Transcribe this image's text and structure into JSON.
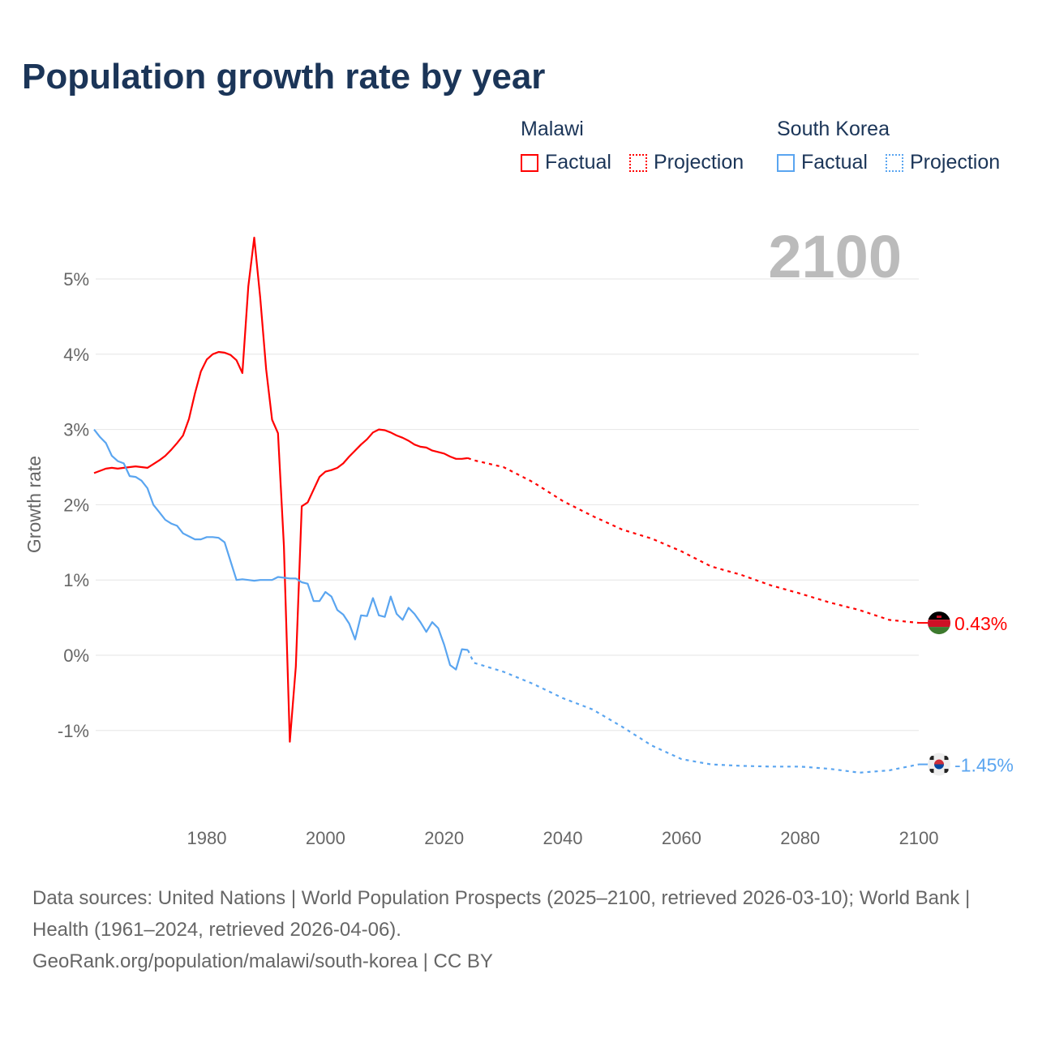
{
  "title": "Population growth rate by year",
  "legend": {
    "groups": [
      {
        "name": "Malawi",
        "factual": "Factual",
        "projection": "Projection",
        "color": "#ff0000"
      },
      {
        "name": "South Korea",
        "factual": "Factual",
        "projection": "Projection",
        "color": "#5aa5f0"
      }
    ]
  },
  "year_label": "2100",
  "footer": {
    "sources": "Data sources: United Nations | World Population Prospects (2025–2100, retrieved 2026-03-10); World Bank | Health (1961–2024, retrieved 2026-04-06).",
    "credit": "GeoRank.org/population/malawi/south-korea | CC BY"
  },
  "chart_data": {
    "type": "line",
    "title": "Population growth rate by year",
    "xlabel": "",
    "ylabel": "Growth rate",
    "xlim": [
      1961,
      2100
    ],
    "ylim": [
      -2,
      5.6
    ],
    "x_ticks": [
      1980,
      2000,
      2020,
      2040,
      2060,
      2080,
      2100
    ],
    "x_tick_labels": [
      "1980",
      "2000",
      "2020",
      "2040",
      "2060",
      "2080",
      "2100"
    ],
    "y_ticks": [
      -1,
      0,
      1,
      2,
      3,
      4,
      5
    ],
    "y_tick_labels": [
      "-1%",
      "0%",
      "1%",
      "2%",
      "3%",
      "4%",
      "5%"
    ],
    "grid": true,
    "legend_position": "top-right",
    "series": [
      {
        "name": "Malawi",
        "color": "#ff0000",
        "end_label": "0.43%",
        "factual": {
          "start_year": 1961,
          "values": [
            2.42,
            2.45,
            2.48,
            2.49,
            2.48,
            2.49,
            2.5,
            2.51,
            2.5,
            2.49,
            2.54,
            2.59,
            2.65,
            2.73,
            2.82,
            2.92,
            3.14,
            3.48,
            3.77,
            3.93,
            4.0,
            4.03,
            4.02,
            3.99,
            3.92,
            3.75,
            4.9,
            5.55,
            4.75,
            3.8,
            3.13,
            2.95,
            1.45,
            -1.15,
            -0.15,
            1.98,
            2.03,
            2.2,
            2.37,
            2.44,
            2.46,
            2.49,
            2.55,
            2.64,
            2.72,
            2.8,
            2.87,
            2.96,
            3.0,
            2.99,
            2.96,
            2.92,
            2.89,
            2.85,
            2.8,
            2.77,
            2.76,
            2.72,
            2.7,
            2.68,
            2.64,
            2.61,
            2.61,
            2.62
          ]
        },
        "projection": {
          "years": [
            2024,
            2025,
            2030,
            2035,
            2040,
            2045,
            2050,
            2055,
            2060,
            2065,
            2070,
            2075,
            2080,
            2085,
            2090,
            2095,
            2100
          ],
          "values": [
            2.62,
            2.59,
            2.5,
            2.3,
            2.05,
            1.85,
            1.67,
            1.55,
            1.38,
            1.18,
            1.07,
            0.93,
            0.82,
            0.7,
            0.6,
            0.47,
            0.43
          ]
        }
      },
      {
        "name": "South Korea",
        "color": "#5aa5f0",
        "end_label": "-1.45%",
        "factual": {
          "start_year": 1961,
          "values": [
            3.0,
            2.9,
            2.82,
            2.65,
            2.58,
            2.55,
            2.38,
            2.37,
            2.32,
            2.22,
            2.0,
            1.9,
            1.8,
            1.75,
            1.72,
            1.62,
            1.58,
            1.54,
            1.54,
            1.57,
            1.57,
            1.56,
            1.5,
            1.25,
            1.0,
            1.01,
            1.0,
            0.99,
            1.0,
            1.0,
            1.0,
            1.04,
            1.03,
            1.02,
            1.02,
            0.97,
            0.95,
            0.72,
            0.72,
            0.84,
            0.78,
            0.6,
            0.54,
            0.42,
            0.21,
            0.53,
            0.52,
            0.76,
            0.53,
            0.51,
            0.78,
            0.55,
            0.47,
            0.63,
            0.55,
            0.44,
            0.31,
            0.44,
            0.36,
            0.14,
            -0.13,
            -0.19,
            0.08,
            0.07
          ]
        },
        "projection": {
          "years": [
            2024,
            2025,
            2030,
            2035,
            2040,
            2045,
            2050,
            2055,
            2060,
            2065,
            2070,
            2075,
            2080,
            2085,
            2090,
            2095,
            2100
          ],
          "values": [
            0.07,
            -0.1,
            -0.22,
            -0.38,
            -0.57,
            -0.72,
            -0.95,
            -1.2,
            -1.38,
            -1.45,
            -1.47,
            -1.48,
            -1.48,
            -1.51,
            -1.56,
            -1.53,
            -1.45
          ]
        }
      }
    ]
  }
}
